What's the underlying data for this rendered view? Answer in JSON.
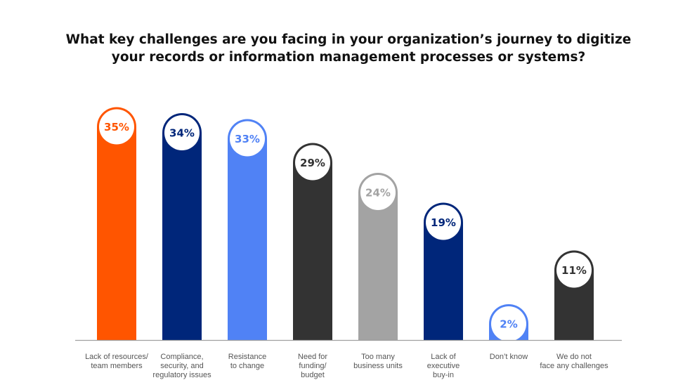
{
  "chart_data": {
    "type": "bar",
    "title": [
      "What key challenges are you facing in your organization’s journey to digitize",
      "your records or information management processes or systems?"
    ],
    "categories": [
      [
        "Lack of resources/",
        "team members"
      ],
      [
        "Compliance,",
        "security, and",
        "regulatory issues"
      ],
      [
        "Resistance",
        "to change"
      ],
      [
        "Need for",
        "funding/",
        "budget"
      ],
      [
        "Too many",
        "business units"
      ],
      [
        "Lack of",
        "executive",
        "buy-in"
      ],
      [
        "Don’t know"
      ],
      [
        "We do not",
        "face any challenges"
      ]
    ],
    "values": [
      35,
      34,
      33,
      29,
      24,
      19,
      2,
      11
    ],
    "value_labels": [
      "35%",
      "34%",
      "33%",
      "29%",
      "24%",
      "19%",
      "2%",
      "11%"
    ],
    "colors": [
      "#ff5500",
      "#00267a",
      "#5082f5",
      "#333333",
      "#a3a3a3",
      "#00267a",
      "#5082f5",
      "#333333"
    ],
    "unit": "%",
    "ylim": [
      0,
      35
    ],
    "grid": false,
    "legend": "none",
    "axis_color": "#a0a0a0"
  }
}
